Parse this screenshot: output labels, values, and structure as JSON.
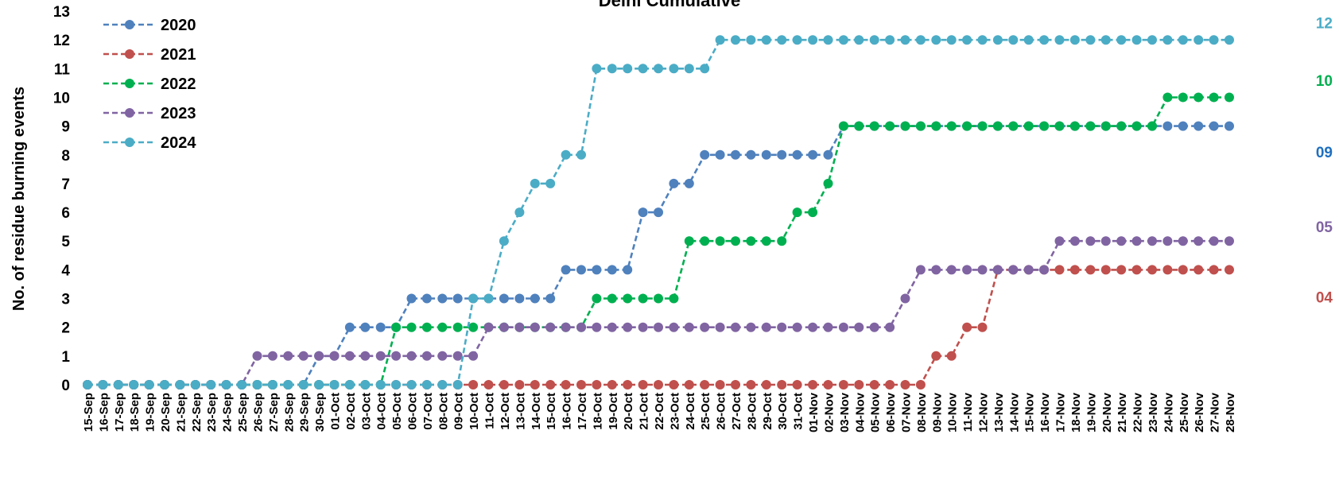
{
  "chart_data": {
    "type": "line",
    "title": "Delhi Cumulative",
    "xlabel": "",
    "ylabel": "No. of residue burning events",
    "ylim": [
      0,
      13
    ],
    "grid": false,
    "legend_position": "top-left",
    "x": [
      "15-Sep",
      "16-Sep",
      "17-Sep",
      "18-Sep",
      "19-Sep",
      "20-Sep",
      "21-Sep",
      "22-Sep",
      "23-Sep",
      "24-Sep",
      "25-Sep",
      "26-Sep",
      "27-Sep",
      "28-Sep",
      "29-Sep",
      "30-Sep",
      "01-Oct",
      "02-Oct",
      "03-Oct",
      "04-Oct",
      "05-Oct",
      "06-Oct",
      "07-Oct",
      "08-Oct",
      "09-Oct",
      "10-Oct",
      "11-Oct",
      "12-Oct",
      "13-Oct",
      "14-Oct",
      "15-Oct",
      "16-Oct",
      "17-Oct",
      "18-Oct",
      "19-Oct",
      "20-Oct",
      "21-Oct",
      "22-Oct",
      "23-Oct",
      "24-Oct",
      "25-Oct",
      "26-Oct",
      "27-Oct",
      "28-Oct",
      "29-Oct",
      "30-Oct",
      "31-Oct",
      "01-Nov",
      "02-Nov",
      "03-Nov",
      "04-Nov",
      "05-Nov",
      "06-Nov",
      "07-Nov",
      "08-Nov",
      "09-Nov",
      "10-Nov",
      "11-Nov",
      "12-Nov",
      "13-Nov",
      "14-Nov",
      "15-Nov",
      "16-Nov",
      "17-Nov",
      "18-Nov",
      "19-Nov",
      "20-Nov",
      "21-Nov",
      "22-Nov",
      "23-Nov",
      "24-Nov",
      "25-Nov",
      "26-Nov",
      "27-Nov",
      "28-Nov"
    ],
    "y_ticks": [
      "0",
      "1",
      "2",
      "3",
      "4",
      "5",
      "6",
      "7",
      "8",
      "9",
      "10",
      "11",
      "12",
      "13"
    ],
    "series": [
      {
        "name": "2020",
        "color": "#4F81BD",
        "end_label": "09",
        "end_color": "#1F6FBF",
        "values": [
          0,
          0,
          0,
          0,
          0,
          0,
          0,
          0,
          0,
          0,
          0,
          0,
          0,
          0,
          0,
          1,
          1,
          2,
          2,
          2,
          2,
          3,
          3,
          3,
          3,
          3,
          3,
          3,
          3,
          3,
          3,
          4,
          4,
          4,
          4,
          4,
          6,
          6,
          7,
          7,
          8,
          8,
          8,
          8,
          8,
          8,
          8,
          8,
          8,
          9,
          9,
          9,
          9,
          9,
          9,
          9,
          9,
          9,
          9,
          9,
          9,
          9,
          9,
          9,
          9,
          9,
          9,
          9,
          9,
          9,
          9,
          9,
          9,
          9,
          9
        ]
      },
      {
        "name": "2021",
        "color": "#C0504D",
        "end_label": "04",
        "end_color": "#C0504D",
        "values": [
          0,
          0,
          0,
          0,
          0,
          0,
          0,
          0,
          0,
          0,
          0,
          0,
          0,
          0,
          0,
          0,
          0,
          0,
          0,
          0,
          0,
          0,
          0,
          0,
          0,
          0,
          0,
          0,
          0,
          0,
          0,
          0,
          0,
          0,
          0,
          0,
          0,
          0,
          0,
          0,
          0,
          0,
          0,
          0,
          0,
          0,
          0,
          0,
          0,
          0,
          0,
          0,
          0,
          0,
          0,
          1,
          1,
          2,
          2,
          4,
          4,
          4,
          4,
          4,
          4,
          4,
          4,
          4,
          4,
          4,
          4,
          4,
          4,
          4,
          4
        ]
      },
      {
        "name": "2022",
        "color": "#00B050",
        "end_label": "10",
        "end_color": "#00B050",
        "values": [
          0,
          0,
          0,
          0,
          0,
          0,
          0,
          0,
          0,
          0,
          0,
          0,
          0,
          0,
          0,
          0,
          0,
          0,
          0,
          0,
          2,
          2,
          2,
          2,
          2,
          2,
          2,
          2,
          2,
          2,
          2,
          2,
          2,
          3,
          3,
          3,
          3,
          3,
          3,
          5,
          5,
          5,
          5,
          5,
          5,
          5,
          6,
          6,
          7,
          9,
          9,
          9,
          9,
          9,
          9,
          9,
          9,
          9,
          9,
          9,
          9,
          9,
          9,
          9,
          9,
          9,
          9,
          9,
          9,
          9,
          10,
          10,
          10,
          10,
          10
        ]
      },
      {
        "name": "2023",
        "color": "#8064A2",
        "end_label": "05",
        "end_color": "#8064A2",
        "values": [
          0,
          0,
          0,
          0,
          0,
          0,
          0,
          0,
          0,
          0,
          0,
          1,
          1,
          1,
          1,
          1,
          1,
          1,
          1,
          1,
          1,
          1,
          1,
          1,
          1,
          1,
          2,
          2,
          2,
          2,
          2,
          2,
          2,
          2,
          2,
          2,
          2,
          2,
          2,
          2,
          2,
          2,
          2,
          2,
          2,
          2,
          2,
          2,
          2,
          2,
          2,
          2,
          2,
          3,
          4,
          4,
          4,
          4,
          4,
          4,
          4,
          4,
          4,
          5,
          5,
          5,
          5,
          5,
          5,
          5,
          5,
          5,
          5,
          5,
          5
        ]
      },
      {
        "name": "2024",
        "color": "#4BACC6",
        "end_label": "12",
        "end_color": "#4BACC6",
        "values": [
          0,
          0,
          0,
          0,
          0,
          0,
          0,
          0,
          0,
          0,
          0,
          0,
          0,
          0,
          0,
          0,
          0,
          0,
          0,
          0,
          0,
          0,
          0,
          0,
          0,
          3,
          3,
          5,
          6,
          7,
          7,
          8,
          8,
          11,
          11,
          11,
          11,
          11,
          11,
          11,
          11,
          12,
          12,
          12,
          12,
          12,
          12,
          12,
          12,
          12,
          12,
          12,
          12,
          12,
          12,
          12,
          12,
          12,
          12,
          12,
          12,
          12,
          12,
          12,
          12,
          12,
          12,
          12,
          12,
          12,
          12,
          12,
          12,
          12,
          12
        ]
      }
    ]
  }
}
